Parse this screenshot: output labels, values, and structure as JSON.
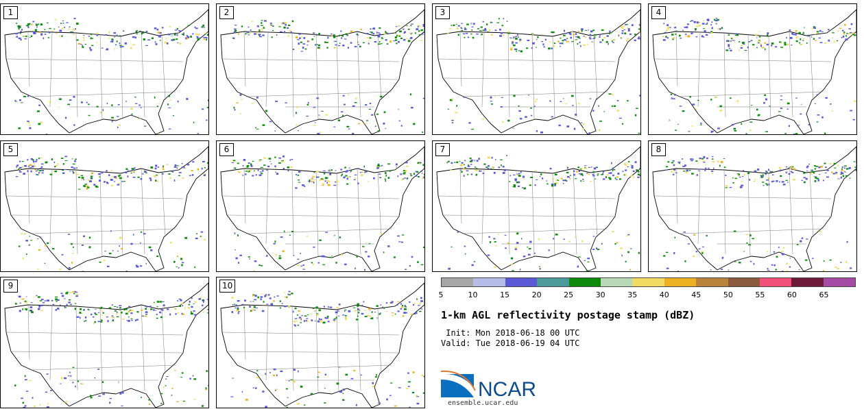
{
  "panels": [
    {
      "label": "1"
    },
    {
      "label": "2"
    },
    {
      "label": "3"
    },
    {
      "label": "4"
    },
    {
      "label": "5"
    },
    {
      "label": "6"
    },
    {
      "label": "7"
    },
    {
      "label": "8"
    },
    {
      "label": "9"
    },
    {
      "label": "10"
    }
  ],
  "colorbar": {
    "colors": [
      "#a6a6a6",
      "#b3bde6",
      "#5a5ad6",
      "#4c9a9a",
      "#0b8a0b",
      "#b8d9b8",
      "#f0dc64",
      "#ecb020",
      "#b8843c",
      "#8c5a3c",
      "#f0507a",
      "#6e1a3a",
      "#a64ca6"
    ],
    "ticks": [
      "5",
      "10",
      "15",
      "20",
      "25",
      "30",
      "35",
      "40",
      "45",
      "50",
      "55",
      "60",
      "65"
    ]
  },
  "title": "1-km AGL reflectivity postage stamp (dBZ)",
  "init": " Init: Mon 2018-06-18 00 UTC",
  "valid": "Valid: Tue 2018-06-19 04 UTC",
  "logo": {
    "text": "NCAR",
    "color": "#0d4a8c"
  },
  "site": "ensemble.ucar.edu"
}
